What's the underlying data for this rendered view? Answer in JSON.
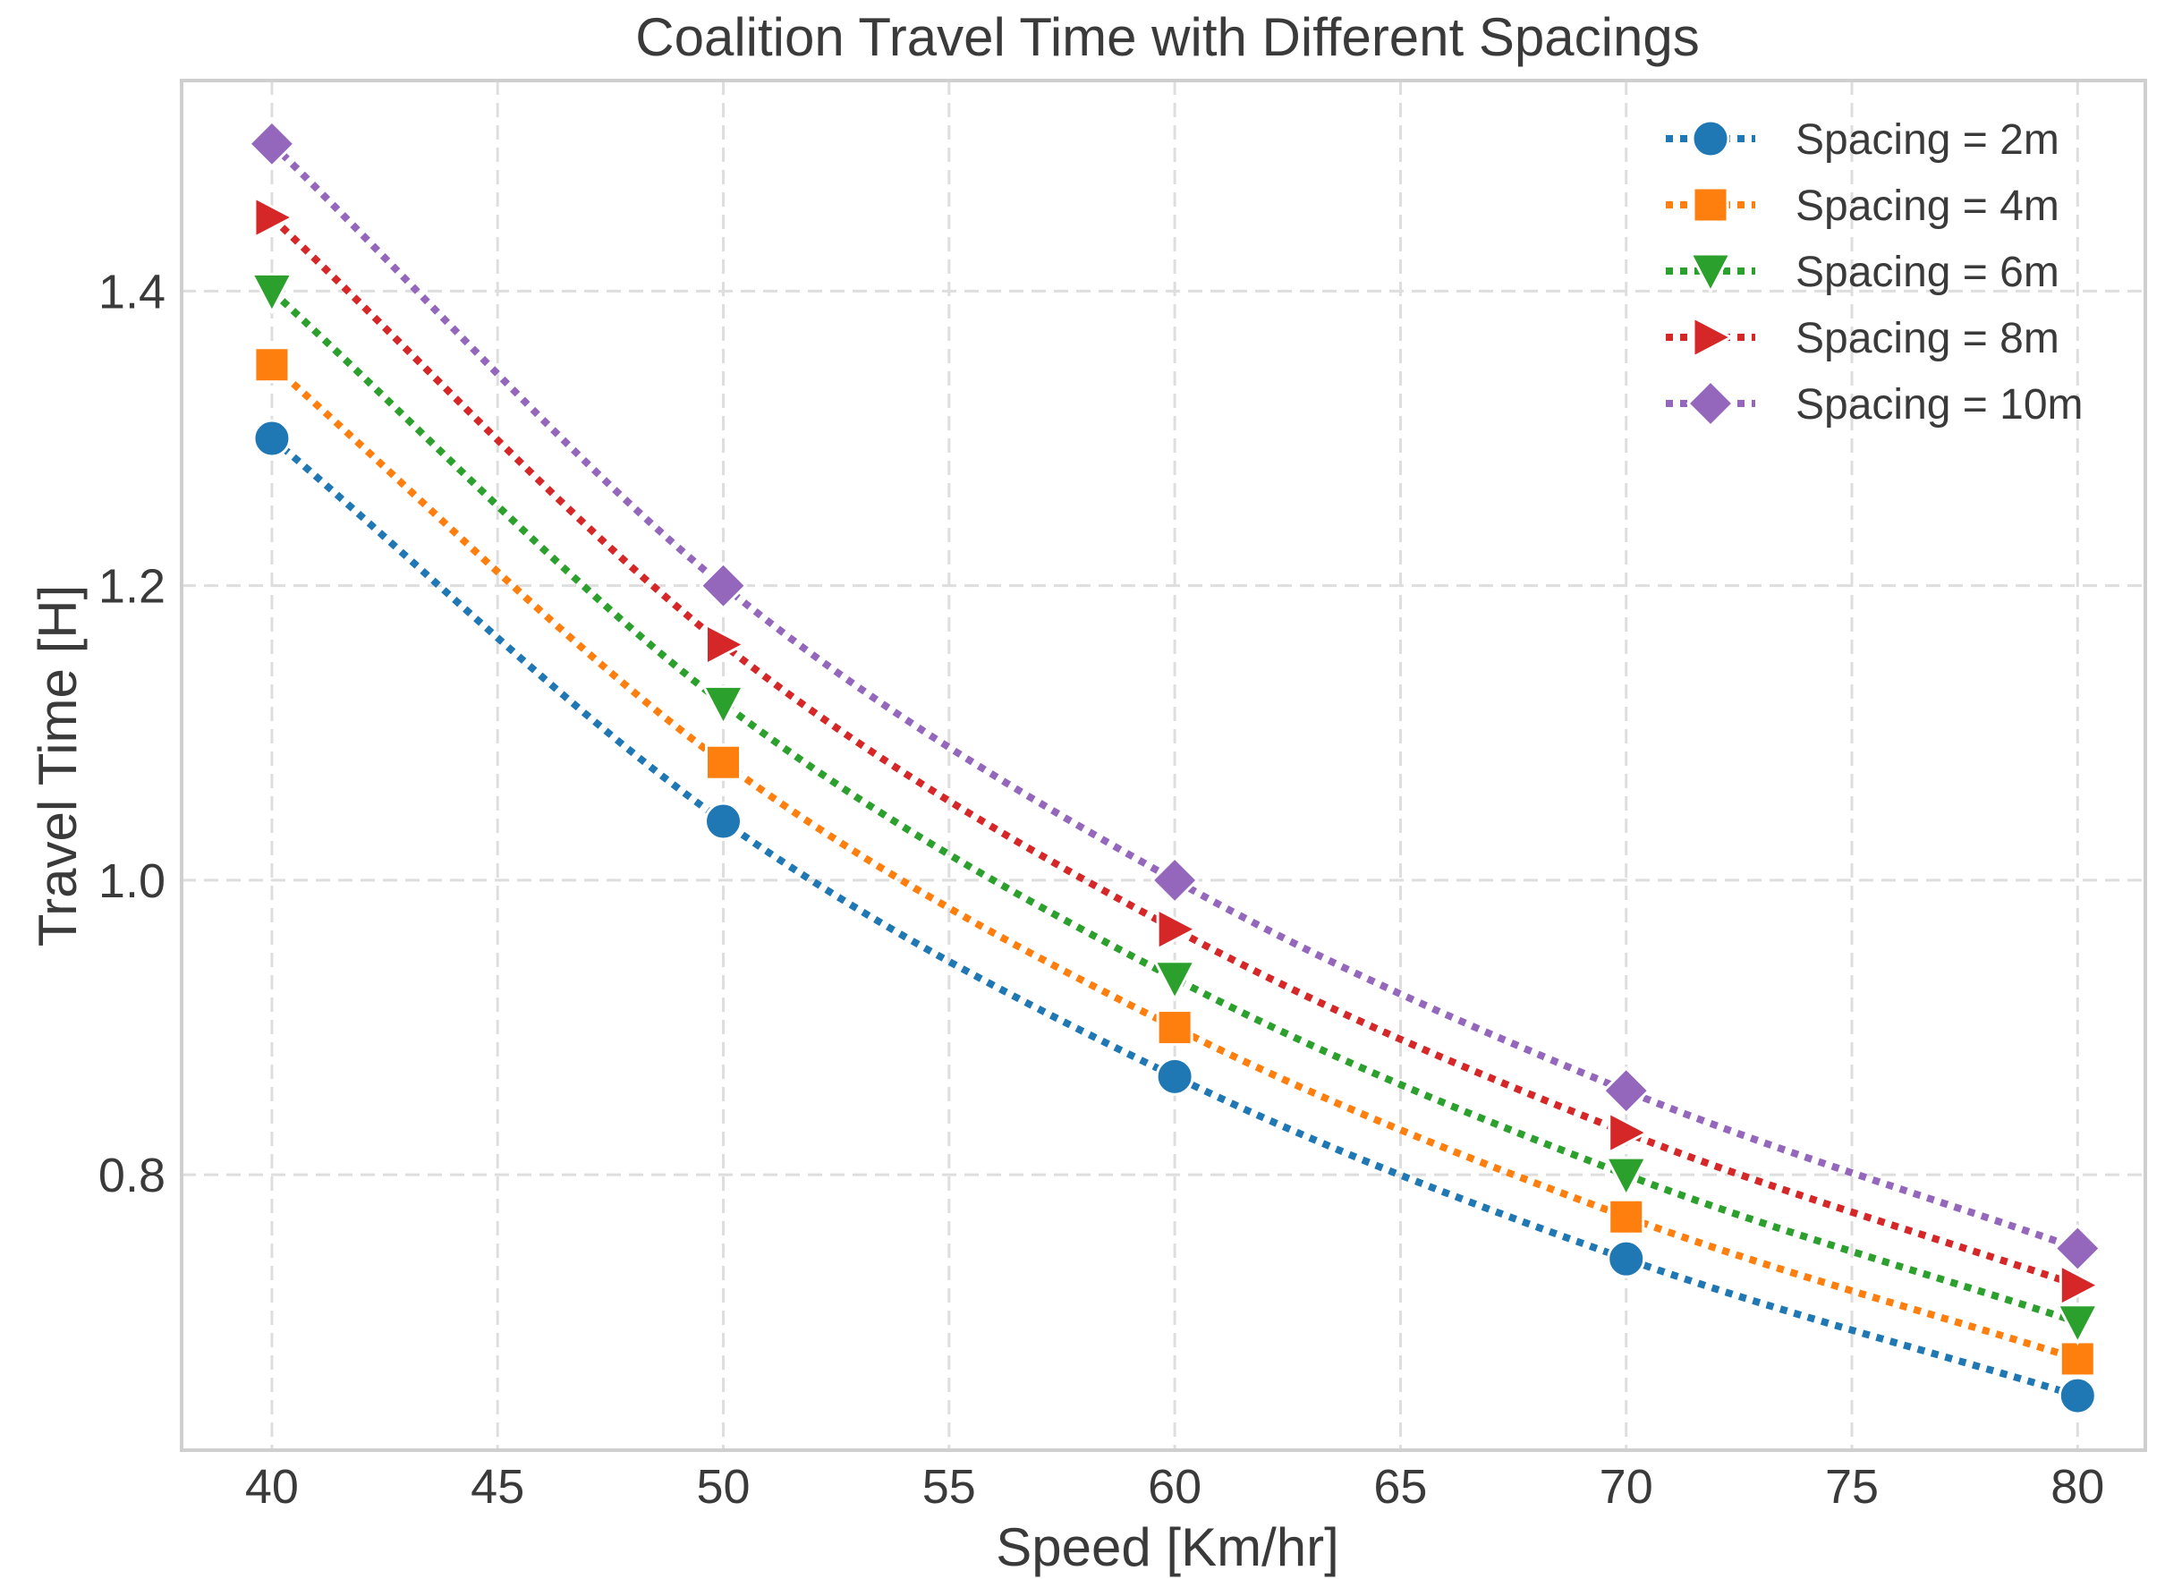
{
  "chart_data": {
    "type": "line",
    "title": "Coalition Travel Time with Different Spacings",
    "xlabel": "Speed [Km/hr]",
    "ylabel": "Travel Time [H]",
    "x": [
      40,
      50,
      60,
      70,
      80
    ],
    "xlim": [
      38,
      81.5
    ],
    "ylim": [
      0.613,
      1.543
    ],
    "xticks": [
      40,
      45,
      50,
      55,
      60,
      65,
      70,
      75,
      80
    ],
    "xtick_labels": [
      "40",
      "45",
      "50",
      "55",
      "60",
      "65",
      "70",
      "75",
      "80"
    ],
    "yticks": [
      0.8,
      1.0,
      1.2,
      1.4
    ],
    "ytick_labels": [
      "0.8",
      "1.0",
      "1.2",
      "1.4"
    ],
    "grid": true,
    "legend_position": "top-right",
    "line_style": "dotted",
    "series": [
      {
        "name": "Spacing = 2m",
        "marker": "circle",
        "color": "#1f77b4",
        "values": [
          1.3,
          1.04,
          0.8667,
          0.7429,
          0.65
        ]
      },
      {
        "name": "Spacing = 4m",
        "marker": "square",
        "color": "#ff7f0e",
        "values": [
          1.35,
          1.08,
          0.9,
          0.7714,
          0.675
        ]
      },
      {
        "name": "Spacing = 6m",
        "marker": "triangle-down",
        "color": "#2ca02c",
        "values": [
          1.4,
          1.12,
          0.9333,
          0.8,
          0.7
        ]
      },
      {
        "name": "Spacing = 8m",
        "marker": "triangle-right",
        "color": "#d62728",
        "values": [
          1.45,
          1.16,
          0.9667,
          0.8286,
          0.725
        ]
      },
      {
        "name": "Spacing = 10m",
        "marker": "diamond",
        "color": "#9467bd",
        "values": [
          1.5,
          1.2,
          1.0,
          0.8571,
          0.75
        ]
      }
    ]
  }
}
